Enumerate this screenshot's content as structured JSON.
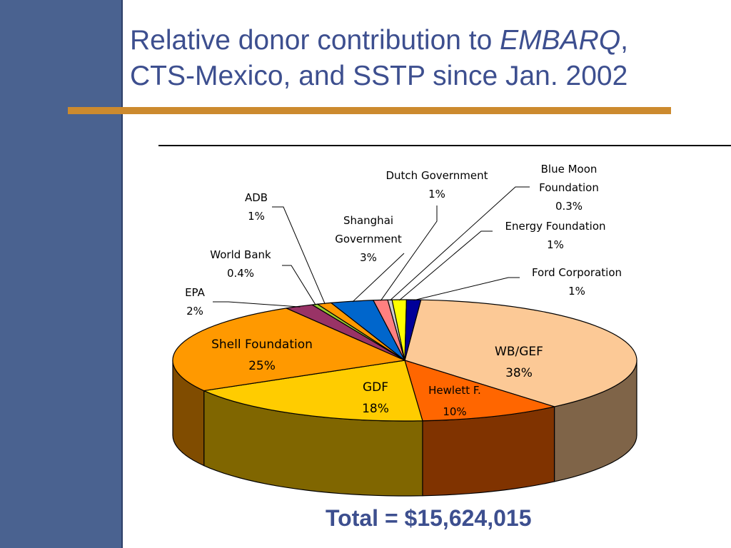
{
  "slide": {
    "title_line1_pre": "Relative donor contribution to ",
    "title_line1_em": "EMBARQ",
    "title_line1_post": ",",
    "title_line2": "CTS-Mexico, and SSTP since Jan. 2002",
    "total": "Total = $15,624,015"
  },
  "colors": {
    "sidebar": "#4a6290",
    "title": "#3d4f8f",
    "accent_bar": "#cc8a2e"
  },
  "chart_data": {
    "type": "pie",
    "title": "",
    "three_d": true,
    "slices": [
      {
        "name": "WB/GEF",
        "name_lines": [
          "WB/GEF"
        ],
        "label": "38%",
        "value": 38,
        "color": "#fcc996",
        "side_color": "#7f6448",
        "label_inside": true
      },
      {
        "name": "Hewlett F.",
        "name_lines": [
          "Hewlett F."
        ],
        "label": "10%",
        "value": 10,
        "color": "#ff6600",
        "side_color": "#803300",
        "label_inside": true
      },
      {
        "name": "GDF",
        "name_lines": [
          "GDF"
        ],
        "label": "18%",
        "value": 18,
        "color": "#ffcc00",
        "side_color": "#806600",
        "label_inside": true
      },
      {
        "name": "Shell Foundation",
        "name_lines": [
          "Shell Foundation"
        ],
        "label": "25%",
        "value": 25,
        "color": "#ff9900",
        "side_color": "#804c00",
        "label_inside": true
      },
      {
        "name": "EPA",
        "name_lines": [
          "EPA"
        ],
        "label": "2%",
        "value": 2,
        "color": "#993366",
        "side_color": "#4c1933",
        "label_inside": false
      },
      {
        "name": "World Bank",
        "name_lines": [
          "World Bank"
        ],
        "label": "0.4%",
        "value": 0.4,
        "color": "#9acd32",
        "side_color": "#4d661a",
        "label_inside": false
      },
      {
        "name": "ADB",
        "name_lines": [
          "ADB"
        ],
        "label": "1%",
        "value": 1,
        "color": "#ff9900",
        "side_color": "#804c00",
        "label_inside": false
      },
      {
        "name": "Shanghai Government",
        "name_lines": [
          "Shanghai",
          "Government"
        ],
        "label": "3%",
        "value": 3,
        "color": "#0066cc",
        "side_color": "#003366",
        "label_inside": false
      },
      {
        "name": "Dutch Government",
        "name_lines": [
          "Dutch Government"
        ],
        "label": "1%",
        "value": 1,
        "color": "#ff8080",
        "side_color": "#804040",
        "label_inside": false
      },
      {
        "name": "Blue Moon Foundation",
        "name_lines": [
          "Blue Moon",
          "Foundation"
        ],
        "label": "0.3%",
        "value": 0.3,
        "color": "#cccccc",
        "side_color": "#666666",
        "label_inside": false
      },
      {
        "name": "Energy Foundation",
        "name_lines": [
          "Energy Foundation"
        ],
        "label": "1%",
        "value": 1,
        "color": "#ffff00",
        "side_color": "#808000",
        "label_inside": false
      },
      {
        "name": "Ford Corporation",
        "name_lines": [
          "Ford Corporation"
        ],
        "label": "1%",
        "value": 1,
        "color": "#000099",
        "side_color": "#00004d",
        "label_inside": false
      }
    ]
  }
}
